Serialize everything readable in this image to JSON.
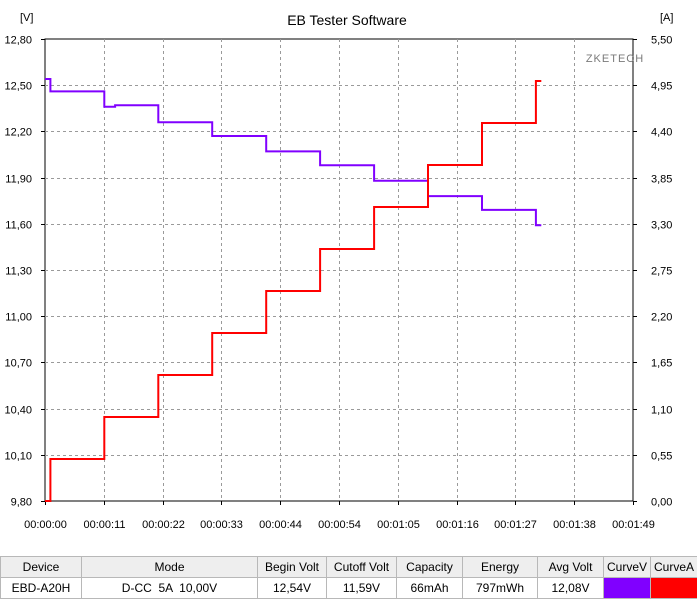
{
  "chart_data": {
    "type": "line",
    "title": "EB Tester Software",
    "watermark": "ZKETECH",
    "left_unit": "[V]",
    "right_unit": "[A]",
    "x_ticks": [
      "00:00:00",
      "00:00:11",
      "00:00:22",
      "00:00:33",
      "00:00:44",
      "00:00:54",
      "00:01:05",
      "00:01:16",
      "00:01:27",
      "00:01:38",
      "00:01:49"
    ],
    "y_left_ticks": [
      "9,80",
      "10,10",
      "10,40",
      "10,70",
      "11,00",
      "11,30",
      "11,60",
      "11,90",
      "12,20",
      "12,50",
      "12,80"
    ],
    "y_right_ticks": [
      "0,00",
      "0,55",
      "1,10",
      "1,65",
      "2,20",
      "2,75",
      "3,30",
      "3,85",
      "4,40",
      "4,95",
      "5,50"
    ],
    "y_left_range": [
      9.8,
      12.8
    ],
    "y_right_range": [
      0,
      5.5
    ],
    "x_range_seconds": [
      0,
      109
    ],
    "grid": true,
    "series": [
      {
        "name": "CurveV",
        "axis": "left",
        "color": "#8000ff",
        "points": [
          [
            0,
            12.54
          ],
          [
            1,
            12.54
          ],
          [
            1,
            12.46
          ],
          [
            11,
            12.46
          ],
          [
            11,
            12.36
          ],
          [
            13,
            12.36
          ],
          [
            13,
            12.37
          ],
          [
            21,
            12.37
          ],
          [
            21,
            12.26
          ],
          [
            31,
            12.26
          ],
          [
            31,
            12.17
          ],
          [
            41,
            12.17
          ],
          [
            41,
            12.07
          ],
          [
            51,
            12.07
          ],
          [
            51,
            11.98
          ],
          [
            61,
            11.98
          ],
          [
            61,
            11.88
          ],
          [
            71,
            11.88
          ],
          [
            71,
            11.78
          ],
          [
            81,
            11.78
          ],
          [
            81,
            11.69
          ],
          [
            91,
            11.69
          ],
          [
            91,
            11.59
          ],
          [
            92,
            11.59
          ]
        ]
      },
      {
        "name": "CurveA",
        "axis": "right",
        "color": "#ff0000",
        "points": [
          [
            0,
            0
          ],
          [
            1,
            0
          ],
          [
            1,
            0.5
          ],
          [
            11,
            0.5
          ],
          [
            11,
            1.0
          ],
          [
            21,
            1.0
          ],
          [
            21,
            1.5
          ],
          [
            31,
            1.5
          ],
          [
            31,
            2.0
          ],
          [
            41,
            2.0
          ],
          [
            41,
            2.5
          ],
          [
            51,
            2.5
          ],
          [
            51,
            3.0
          ],
          [
            61,
            3.0
          ],
          [
            61,
            3.5
          ],
          [
            71,
            3.5
          ],
          [
            71,
            4.0
          ],
          [
            81,
            4.0
          ],
          [
            81,
            4.5
          ],
          [
            91,
            4.5
          ],
          [
            91,
            5.0
          ],
          [
            92,
            5.0
          ]
        ]
      }
    ]
  },
  "table": {
    "headers": [
      "Device",
      "Mode",
      "Begin Volt",
      "Cutoff Volt",
      "Capacity",
      "Energy",
      "Avg Volt",
      "CurveV",
      "CurveA"
    ],
    "row": {
      "device": "EBD-A20H",
      "mode": "D-CC  5A  10,00V",
      "begin_volt": "12,54V",
      "cutoff_volt": "11,59V",
      "capacity": "66mAh",
      "energy": "797mWh",
      "avg_volt": "12,08V"
    },
    "curve_colors": {
      "v": "#8000ff",
      "a": "#ff0000"
    }
  }
}
